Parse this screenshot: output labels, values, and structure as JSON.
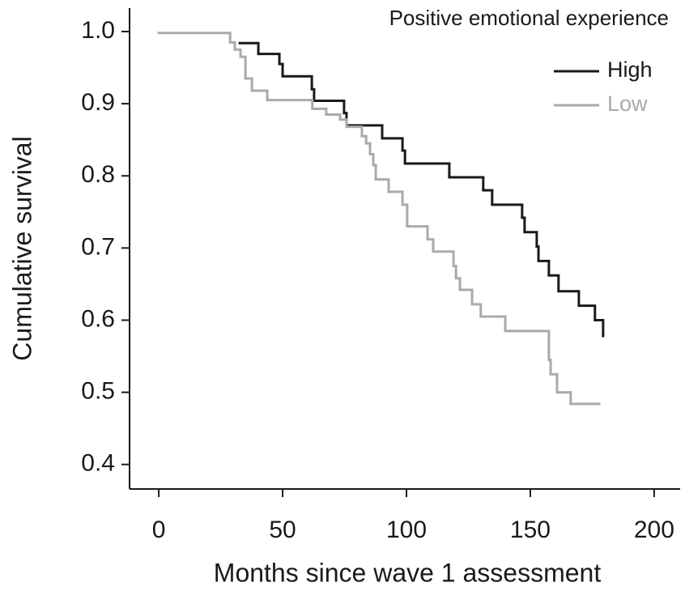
{
  "chart_data": {
    "type": "step",
    "legend_title": "Positive emotional experience",
    "x_label": "Months since wave 1 assessment",
    "y_label": "Cumulative survival",
    "xlim": [
      -11.8,
      210.5
    ],
    "ylim": [
      0.366,
      1.0325
    ],
    "xticks": [
      0,
      50,
      100,
      150,
      200
    ],
    "yticks": [
      {
        "value": 0.4,
        "label": "0.4"
      },
      {
        "value": 0.5,
        "label": "0.5"
      },
      {
        "value": 0.6,
        "label": "0.6"
      },
      {
        "value": 0.7,
        "label": "0.7"
      },
      {
        "value": 0.8,
        "label": "0.8"
      },
      {
        "value": 0.9,
        "label": "0.9"
      },
      {
        "value": 1.0,
        "label": "1.0"
      }
    ],
    "legend_position": "upper right",
    "series": [
      {
        "name": "High",
        "color": "#1a1a1a",
        "x": [
          32.7,
          40.2,
          48.7,
          50,
          61.8,
          62.7,
          74.8,
          75.8,
          90.2,
          98.4,
          99.4,
          117.3,
          131,
          134.6,
          146.7,
          147.7,
          152.6,
          153.3,
          157.5,
          161.4,
          169.6,
          176.1,
          179.4
        ],
        "values": [
          0.984,
          0.969,
          0.955,
          0.938,
          0.92,
          0.904,
          0.887,
          0.87,
          0.852,
          0.835,
          0.817,
          0.798,
          0.78,
          0.76,
          0.742,
          0.722,
          0.702,
          0.682,
          0.662,
          0.64,
          0.62,
          0.6,
          0.578
        ]
      },
      {
        "name": "Low",
        "color": "#aaaaaa",
        "x": [
          0,
          28.8,
          30.7,
          33,
          35,
          37.6,
          43.8,
          62,
          67.6,
          73.2,
          75.8,
          82,
          83.7,
          85.3,
          86.6,
          87.6,
          92.8,
          98.4,
          100.3,
          108.5,
          110.8,
          119,
          120,
          121.6,
          126.5,
          130,
          139.9,
          157.5,
          158.2,
          160.8,
          166.3,
          177.8
        ],
        "values": [
          0.998,
          0.985,
          0.975,
          0.965,
          0.935,
          0.918,
          0.905,
          0.893,
          0.885,
          0.878,
          0.868,
          0.855,
          0.845,
          0.83,
          0.815,
          0.795,
          0.778,
          0.76,
          0.73,
          0.712,
          0.695,
          0.675,
          0.658,
          0.642,
          0.622,
          0.605,
          0.585,
          0.545,
          0.525,
          0.5,
          0.484,
          0.484
        ]
      }
    ]
  }
}
